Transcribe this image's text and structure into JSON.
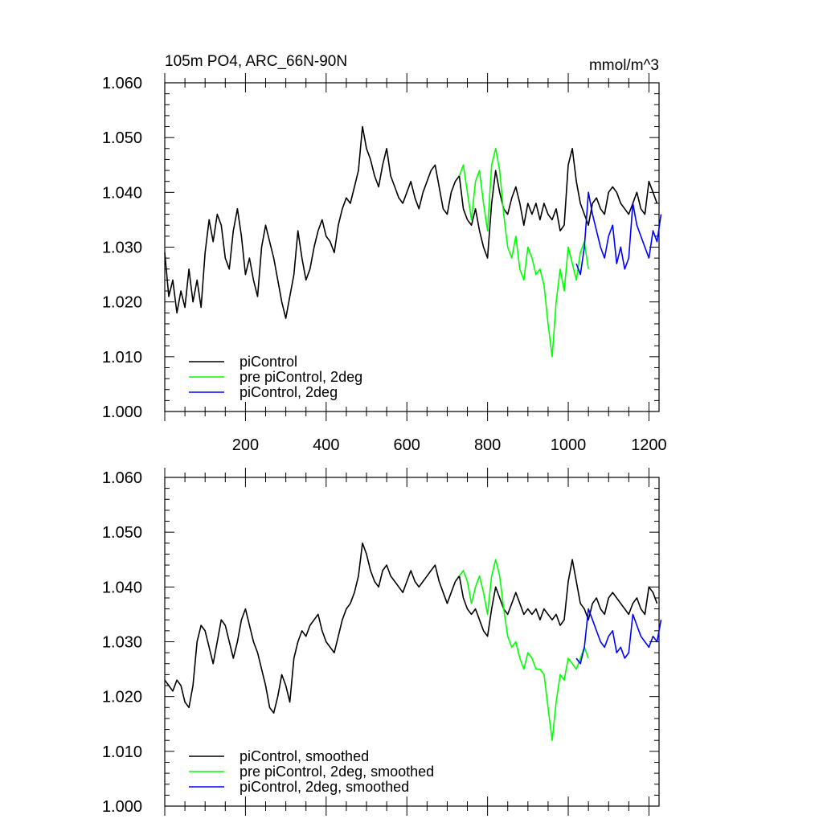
{
  "chart_data": [
    {
      "id": "top",
      "type": "line",
      "title": "105m PO4, ARC_66N-90N",
      "units": "mmol/m^3",
      "xlim": [
        0,
        1225
      ],
      "ylim": [
        1.0,
        1.06
      ],
      "xticks": [
        200,
        400,
        600,
        800,
        1000,
        1200
      ],
      "xtick_labels": [
        "200",
        "400",
        "600",
        "800",
        "1000",
        "1200"
      ],
      "yticks": [
        1.0,
        1.01,
        1.02,
        1.03,
        1.04,
        1.05,
        1.06
      ],
      "ytick_labels": [
        "1.000",
        "1.010",
        "1.020",
        "1.030",
        "1.040",
        "1.050",
        "1.060"
      ],
      "legend_position": "bottom-left",
      "series": [
        {
          "name": "piControl",
          "color": "#000000",
          "x_start": 0,
          "x_step": 10,
          "values": [
            1.029,
            1.021,
            1.024,
            1.018,
            1.022,
            1.019,
            1.026,
            1.02,
            1.024,
            1.019,
            1.029,
            1.035,
            1.031,
            1.036,
            1.034,
            1.028,
            1.026,
            1.033,
            1.037,
            1.032,
            1.025,
            1.028,
            1.024,
            1.021,
            1.03,
            1.034,
            1.031,
            1.028,
            1.024,
            1.02,
            1.017,
            1.021,
            1.025,
            1.033,
            1.028,
            1.024,
            1.026,
            1.03,
            1.033,
            1.035,
            1.032,
            1.031,
            1.029,
            1.034,
            1.037,
            1.039,
            1.038,
            1.041,
            1.044,
            1.052,
            1.048,
            1.046,
            1.043,
            1.041,
            1.045,
            1.048,
            1.043,
            1.041,
            1.039,
            1.038,
            1.04,
            1.042,
            1.039,
            1.037,
            1.04,
            1.042,
            1.044,
            1.045,
            1.041,
            1.037,
            1.036,
            1.04,
            1.042,
            1.043,
            1.037,
            1.035,
            1.034,
            1.037,
            1.033,
            1.03,
            1.028,
            1.038,
            1.044,
            1.04,
            1.037,
            1.036,
            1.039,
            1.041,
            1.038,
            1.034,
            1.038,
            1.036,
            1.038,
            1.035,
            1.038,
            1.036,
            1.035,
            1.037,
            1.033,
            1.034,
            1.045,
            1.048,
            1.042,
            1.038,
            1.036,
            1.034,
            1.038,
            1.039,
            1.037,
            1.036,
            1.04,
            1.041,
            1.04,
            1.038,
            1.037,
            1.036,
            1.038,
            1.04,
            1.037,
            1.036,
            1.042,
            1.04,
            1.038
          ]
        },
        {
          "name": "pre piControl, 2deg",
          "color": "#00ff00",
          "x_start": 730,
          "x_step": 10,
          "values": [
            1.043,
            1.045,
            1.04,
            1.035,
            1.042,
            1.044,
            1.038,
            1.033,
            1.045,
            1.048,
            1.044,
            1.036,
            1.03,
            1.028,
            1.032,
            1.026,
            1.024,
            1.03,
            1.028,
            1.025,
            1.026,
            1.023,
            1.016,
            1.01,
            1.02,
            1.026,
            1.022,
            1.03,
            1.027,
            1.024,
            1.029,
            1.031,
            1.026
          ]
        },
        {
          "name": "piControl, 2deg",
          "color": "#0000ff",
          "x_start": 1020,
          "x_step": 10,
          "values": [
            1.027,
            1.025,
            1.03,
            1.04,
            1.036,
            1.033,
            1.03,
            1.028,
            1.032,
            1.034,
            1.027,
            1.03,
            1.026,
            1.028,
            1.038,
            1.034,
            1.032,
            1.03,
            1.028,
            1.033,
            1.031,
            1.036
          ]
        }
      ],
      "legend": [
        "piControl",
        "pre piControl, 2deg",
        "piControl, 2deg"
      ]
    },
    {
      "id": "bottom",
      "type": "line",
      "title": "",
      "xlim": [
        0,
        1225
      ],
      "ylim": [
        1.0,
        1.06
      ],
      "yticks": [
        1.0,
        1.01,
        1.02,
        1.03,
        1.04,
        1.05,
        1.06
      ],
      "ytick_labels": [
        "1.000",
        "1.010",
        "1.020",
        "1.030",
        "1.040",
        "1.050",
        "1.060"
      ],
      "legend_position": "bottom-left",
      "series": [
        {
          "name": "piControl, smoothed",
          "color": "#000000",
          "x_start": 0,
          "x_step": 10,
          "values": [
            1.023,
            1.022,
            1.021,
            1.023,
            1.022,
            1.019,
            1.018,
            1.022,
            1.03,
            1.033,
            1.032,
            1.029,
            1.026,
            1.03,
            1.034,
            1.033,
            1.03,
            1.027,
            1.03,
            1.034,
            1.036,
            1.033,
            1.03,
            1.028,
            1.025,
            1.022,
            1.018,
            1.017,
            1.02,
            1.024,
            1.022,
            1.019,
            1.027,
            1.03,
            1.032,
            1.031,
            1.033,
            1.034,
            1.035,
            1.032,
            1.03,
            1.029,
            1.028,
            1.031,
            1.034,
            1.036,
            1.037,
            1.039,
            1.042,
            1.048,
            1.046,
            1.043,
            1.041,
            1.04,
            1.043,
            1.044,
            1.042,
            1.041,
            1.04,
            1.039,
            1.041,
            1.043,
            1.041,
            1.04,
            1.041,
            1.042,
            1.043,
            1.044,
            1.041,
            1.039,
            1.037,
            1.039,
            1.041,
            1.042,
            1.038,
            1.036,
            1.035,
            1.036,
            1.034,
            1.032,
            1.031,
            1.036,
            1.04,
            1.038,
            1.036,
            1.035,
            1.037,
            1.039,
            1.037,
            1.035,
            1.036,
            1.035,
            1.036,
            1.034,
            1.036,
            1.035,
            1.034,
            1.035,
            1.033,
            1.034,
            1.041,
            1.045,
            1.041,
            1.037,
            1.036,
            1.034,
            1.037,
            1.038,
            1.036,
            1.035,
            1.038,
            1.039,
            1.038,
            1.037,
            1.036,
            1.035,
            1.037,
            1.038,
            1.036,
            1.035,
            1.04,
            1.039,
            1.037
          ]
        },
        {
          "name": "pre piControl, 2deg, smoothed",
          "color": "#00ff00",
          "x_start": 730,
          "x_step": 10,
          "values": [
            1.042,
            1.043,
            1.041,
            1.037,
            1.04,
            1.042,
            1.039,
            1.035,
            1.042,
            1.045,
            1.042,
            1.036,
            1.031,
            1.029,
            1.03,
            1.027,
            1.025,
            1.028,
            1.027,
            1.025,
            1.025,
            1.024,
            1.018,
            1.012,
            1.019,
            1.024,
            1.023,
            1.027,
            1.026,
            1.025,
            1.027,
            1.029,
            1.027
          ]
        },
        {
          "name": "piControl, 2deg, smoothed",
          "color": "#0000ff",
          "x_start": 1020,
          "x_step": 10,
          "values": [
            1.027,
            1.026,
            1.029,
            1.036,
            1.034,
            1.032,
            1.03,
            1.029,
            1.031,
            1.032,
            1.028,
            1.029,
            1.027,
            1.028,
            1.035,
            1.033,
            1.031,
            1.03,
            1.029,
            1.031,
            1.03,
            1.034
          ]
        }
      ],
      "legend": [
        "piControl, smoothed",
        "pre piControl, 2deg, smoothed",
        "piControl, 2deg, smoothed"
      ]
    }
  ]
}
